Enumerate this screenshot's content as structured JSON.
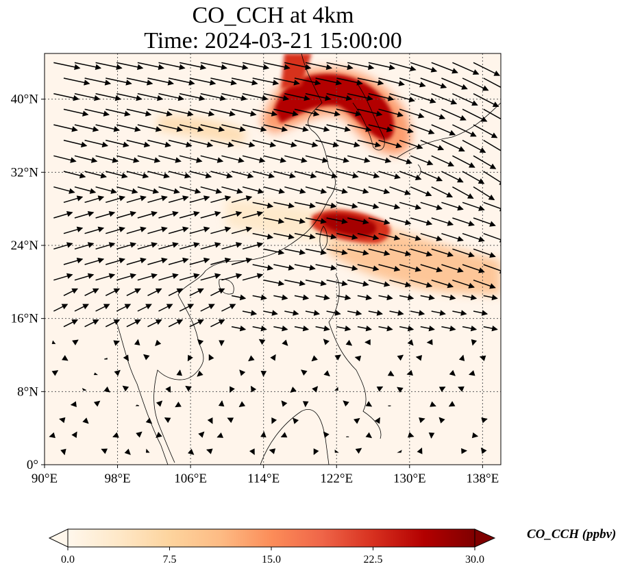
{
  "title": {
    "line1": "CO_CCH at 4km",
    "line2": "Time: 2024-03-21 15:00:00"
  },
  "map": {
    "extent": {
      "lon_min": 90,
      "lon_max": 140,
      "lat_min": 0,
      "lat_max": 45
    },
    "lon_ticks": [
      {
        "value": 90,
        "label": "90°E"
      },
      {
        "value": 98,
        "label": "98°E"
      },
      {
        "value": 106,
        "label": "106°E"
      },
      {
        "value": 114,
        "label": "114°E"
      },
      {
        "value": 122,
        "label": "122°E"
      },
      {
        "value": 130,
        "label": "130°E"
      },
      {
        "value": 138,
        "label": "138°E"
      }
    ],
    "lat_ticks": [
      {
        "value": 0,
        "label": "0°"
      },
      {
        "value": 8,
        "label": "8°N"
      },
      {
        "value": 16,
        "label": "16°N"
      },
      {
        "value": 24,
        "label": "24°N"
      },
      {
        "value": 32,
        "label": "32°N"
      },
      {
        "value": 40,
        "label": "40°N"
      }
    ],
    "gridlines": true,
    "background_color": "#fff5eb",
    "plumes": [
      {
        "name": "northeast-china-korea-plume",
        "center_lon": 122,
        "center_lat": 40,
        "level": 28
      },
      {
        "name": "east-china-sea-plume",
        "center_lon": 124,
        "center_lat": 27,
        "level": 27
      },
      {
        "name": "eastward-outflow-band",
        "center_lon": 132,
        "center_lat": 22,
        "level": 10
      },
      {
        "name": "central-china-weak-band",
        "center_lon": 106,
        "center_lat": 36,
        "level": 8
      }
    ],
    "wind_vectors": "regular grid of black wind arrows, westerly flow north of 16°N, weak variable flow to the south"
  },
  "colorbar": {
    "title": "CO_CCH (ppbv)",
    "min": 0.0,
    "max": 30.0,
    "ticks": [
      "0.0",
      "7.5",
      "15.0",
      "22.5",
      "30.0"
    ],
    "colormap": "OrRd",
    "colors": [
      "#fff7ec",
      "#fee8c8",
      "#fdd49e",
      "#fdbb84",
      "#fc8d59",
      "#ef6548",
      "#d7301f",
      "#b30000",
      "#7f0000"
    ],
    "extend": "both"
  }
}
